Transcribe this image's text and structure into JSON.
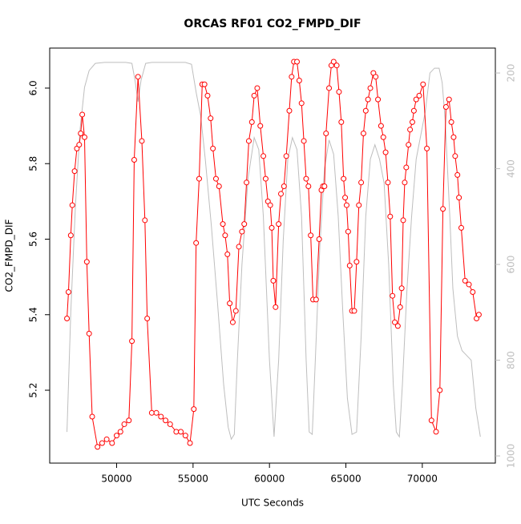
{
  "chart_data": {
    "type": "line",
    "title": "ORCAS RF01 CO2_FMPD_DIF",
    "x_label": "UTC Seconds",
    "y_label": "CO2_FMPD_DIF",
    "xlim": [
      45620,
      74780
    ],
    "xticks": [
      50000,
      55000,
      60000,
      65000,
      70000
    ],
    "ylim": [
      5.007,
      6.106
    ],
    "yticks": [
      5.2,
      5.4,
      5.6,
      5.8,
      {
        "value": 6,
        "label": "6.0"
      }
    ],
    "y2lim": [
      148,
      1015
    ],
    "y2ticks": [
      200,
      400,
      600,
      800,
      1000
    ],
    "y2_inverted": true,
    "series": [
      {
        "color": "#ff0000",
        "marker": "circle",
        "x": [
          46750,
          46850,
          47000,
          47100,
          47250,
          47400,
          47550,
          47650,
          47750,
          47900,
          48050,
          48200,
          48400,
          48750,
          49050,
          49350,
          49700,
          50000,
          50250,
          50500,
          50800,
          51000,
          51150,
          51400,
          51650,
          51850,
          52000,
          52300,
          52600,
          52900,
          53200,
          53500,
          53900,
          54200,
          54500,
          54800,
          55050,
          55200,
          55400,
          55600,
          55750,
          55950,
          56150,
          56300,
          56500,
          56700,
          56950,
          57100,
          57250,
          57400,
          57600,
          57800,
          58000,
          58200,
          58350,
          58500,
          58650,
          58850,
          59000,
          59200,
          59400,
          59600,
          59750,
          59900,
          60050,
          60150,
          60250,
          60400,
          60600,
          60750,
          60950,
          61100,
          61300,
          61450,
          61600,
          61800,
          61950,
          62100,
          62250,
          62400,
          62550,
          62700,
          62850,
          63050,
          63250,
          63400,
          63500,
          63600,
          63700,
          63900,
          64050,
          64200,
          64400,
          64550,
          64700,
          64850,
          64950,
          65050,
          65150,
          65250,
          65400,
          65550,
          65700,
          65850,
          66000,
          66150,
          66300,
          66450,
          66600,
          66800,
          66950,
          67100,
          67300,
          67450,
          67600,
          67750,
          67900,
          68050,
          68200,
          68400,
          68550,
          68650,
          68750,
          68850,
          68950,
          69100,
          69200,
          69350,
          69450,
          69600,
          69800,
          70050,
          70300,
          70600,
          70900,
          71150,
          71350,
          71550,
          71750,
          71900,
          72050,
          72150,
          72300,
          72400,
          72550,
          72800,
          73050,
          73300,
          73550,
          73700
        ],
        "values": [
          5.39,
          5.46,
          5.61,
          5.69,
          5.78,
          5.84,
          5.85,
          5.88,
          5.93,
          5.87,
          5.54,
          5.35,
          5.13,
          5.05,
          5.06,
          5.07,
          5.06,
          5.08,
          5.09,
          5.11,
          5.12,
          5.33,
          5.81,
          6.03,
          5.86,
          5.65,
          5.39,
          5.14,
          5.14,
          5.13,
          5.12,
          5.11,
          5.09,
          5.09,
          5.08,
          5.06,
          5.15,
          5.59,
          5.76,
          6.01,
          6.01,
          5.98,
          5.92,
          5.84,
          5.76,
          5.74,
          5.64,
          5.61,
          5.56,
          5.43,
          5.38,
          5.41,
          5.58,
          5.62,
          5.64,
          5.75,
          5.86,
          5.91,
          5.98,
          6.0,
          5.9,
          5.82,
          5.76,
          5.7,
          5.69,
          5.63,
          5.49,
          5.42,
          5.64,
          5.72,
          5.74,
          5.82,
          5.94,
          6.03,
          6.07,
          6.07,
          6.02,
          5.96,
          5.86,
          5.76,
          5.74,
          5.61,
          5.44,
          5.44,
          5.6,
          5.73,
          5.74,
          5.74,
          5.88,
          6.0,
          6.06,
          6.07,
          6.06,
          5.99,
          5.91,
          5.76,
          5.71,
          5.69,
          5.62,
          5.53,
          5.41,
          5.41,
          5.54,
          5.69,
          5.75,
          5.88,
          5.94,
          5.97,
          6.0,
          6.04,
          6.03,
          5.97,
          5.9,
          5.87,
          5.83,
          5.75,
          5.66,
          5.45,
          5.38,
          5.37,
          5.42,
          5.47,
          5.65,
          5.75,
          5.79,
          5.85,
          5.89,
          5.91,
          5.94,
          5.97,
          5.98,
          6.01,
          5.84,
          5.12,
          5.09,
          5.2,
          5.68,
          5.95,
          5.97,
          5.91,
          5.87,
          5.82,
          5.77,
          5.71,
          5.63,
          5.49,
          5.48,
          5.46,
          5.39,
          5.4
        ]
      },
      {
        "color": "#bebebe",
        "axis": "y2",
        "x": [
          46750,
          47000,
          47300,
          47600,
          47900,
          48200,
          48600,
          49200,
          50000,
          50600,
          51000,
          51200,
          51400,
          51600,
          51900,
          52300,
          53500,
          54500,
          54900,
          55200,
          55500,
          55800,
          56200,
          56600,
          57000,
          57300,
          57500,
          57700,
          57900,
          58200,
          58600,
          59000,
          59300,
          59600,
          60000,
          60300,
          60600,
          60900,
          61200,
          61500,
          61800,
          62100,
          62400,
          62600,
          62800,
          63000,
          63300,
          63600,
          63900,
          64200,
          64500,
          64800,
          65100,
          65400,
          65700,
          66000,
          66300,
          66600,
          66900,
          67200,
          67500,
          67800,
          68100,
          68300,
          68500,
          68700,
          69000,
          69300,
          69600,
          69900,
          70200,
          70500,
          70800,
          71100,
          71300,
          71500,
          71800,
          72000,
          72300,
          72600,
          72900,
          73200,
          73500,
          73800
        ],
        "values": [
          950,
          700,
          480,
          320,
          230,
          195,
          180,
          178,
          178,
          178,
          180,
          215,
          260,
          215,
          180,
          178,
          178,
          178,
          182,
          240,
          290,
          380,
          520,
          680,
          850,
          940,
          965,
          955,
          800,
          600,
          420,
          335,
          360,
          500,
          800,
          960,
          800,
          550,
          380,
          335,
          360,
          500,
          800,
          950,
          955,
          800,
          560,
          400,
          340,
          370,
          500,
          700,
          880,
          955,
          950,
          750,
          500,
          380,
          350,
          380,
          430,
          600,
          850,
          950,
          960,
          850,
          650,
          500,
          380,
          330,
          280,
          200,
          190,
          190,
          220,
          300,
          500,
          650,
          750,
          780,
          790,
          800,
          900,
          960
        ]
      }
    ]
  }
}
